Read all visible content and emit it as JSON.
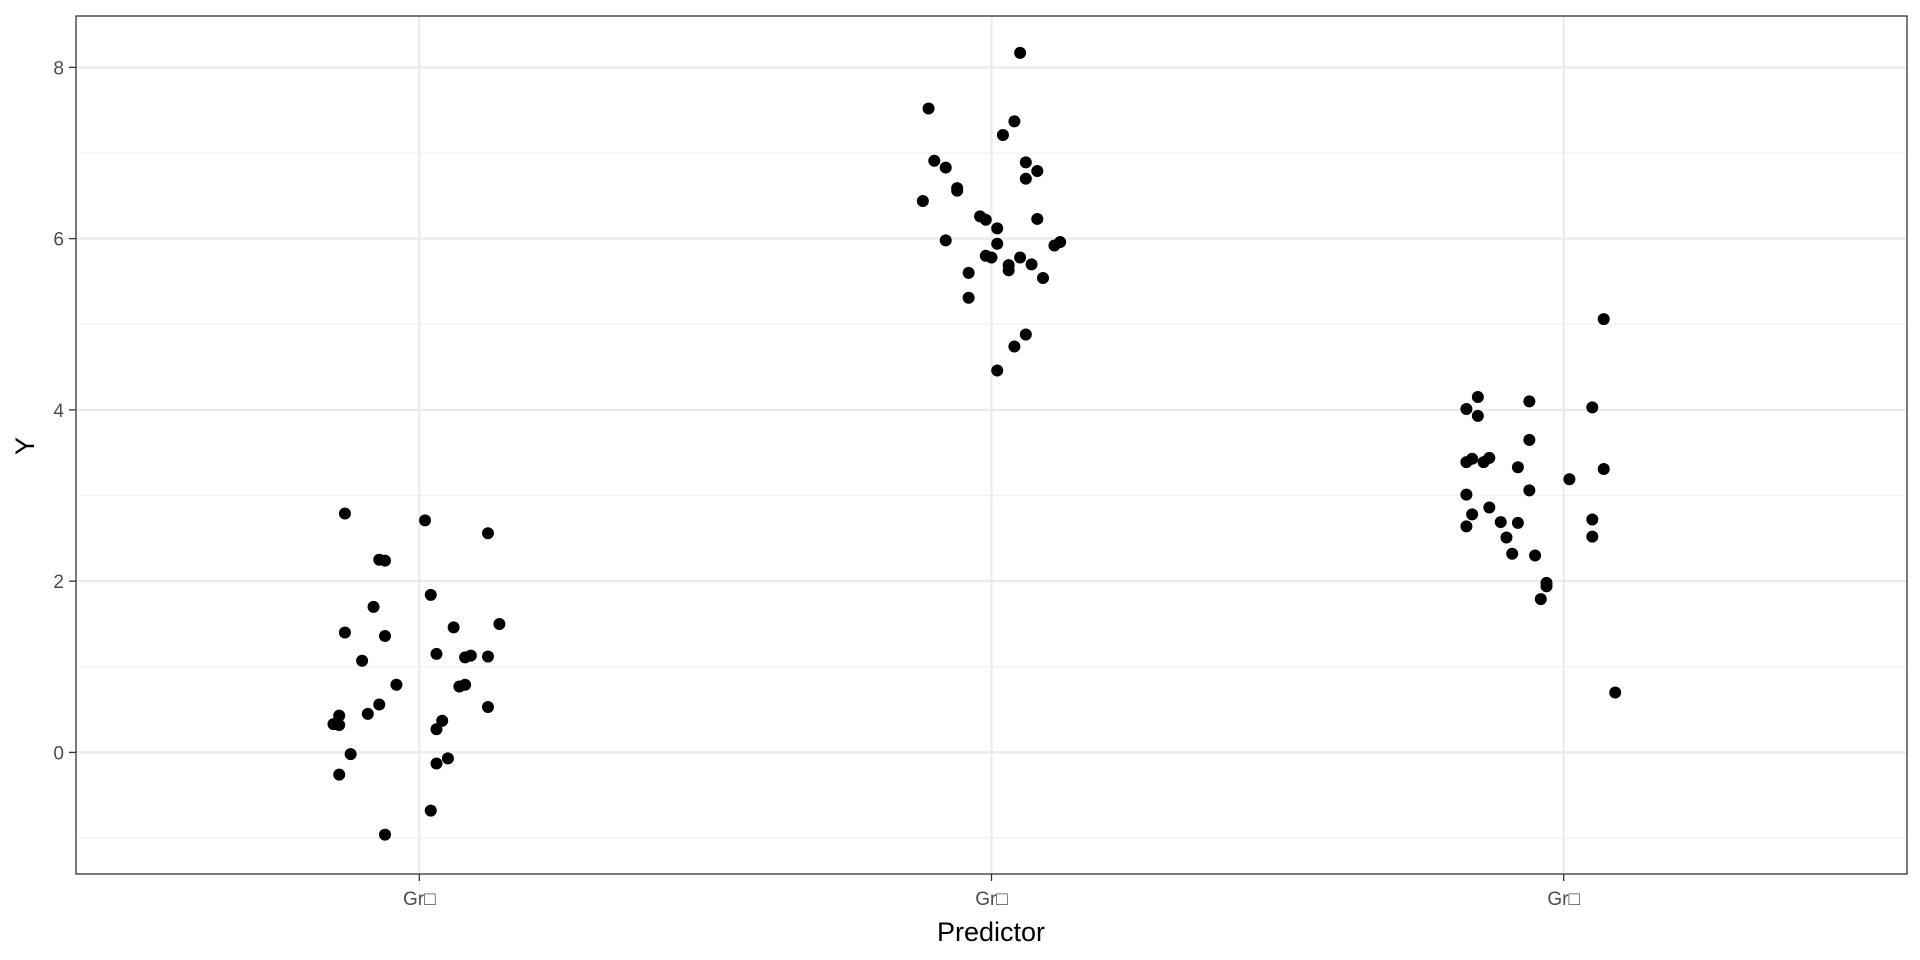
{
  "chart_data": {
    "type": "scatter",
    "xlabel": "Predictor",
    "ylabel": "Y",
    "categories": [
      "Gr□",
      "Gr□",
      "Gr□"
    ],
    "ylim": [
      -1.42,
      8.6
    ],
    "yticks": [
      0,
      2,
      4,
      6,
      8
    ],
    "grid": true,
    "colors": {
      "point": "#000000",
      "grid_major": "#ebebeb",
      "grid_minor": "#f2f2f2",
      "panel_border": "#333333",
      "tick_label": "#4d4d4d"
    },
    "series": [
      {
        "category_index": 0,
        "x_offset": [
          -0.13,
          -0.13,
          -0.14,
          -0.08,
          -0.14,
          -0.12,
          -0.09,
          -0.07,
          -0.06,
          0.01,
          -0.14,
          -0.1,
          -0.06,
          -0.07,
          -0.15,
          -0.06,
          -0.04,
          0.02,
          0.03,
          0.07,
          0.06,
          0.08,
          0.14,
          0.09,
          0.03,
          0.12,
          0.08,
          0.04,
          0.02,
          0.03,
          0.05,
          0.12,
          0.12
        ],
        "y": [
          2.79,
          1.4,
          0.43,
          1.7,
          -0.26,
          -0.02,
          0.45,
          0.56,
          1.36,
          2.71,
          0.32,
          1.07,
          2.24,
          2.25,
          0.33,
          -0.96,
          0.79,
          1.84,
          1.15,
          0.77,
          1.46,
          0.79,
          1.5,
          1.13,
          0.27,
          2.56,
          1.11,
          0.37,
          -0.68,
          -0.13,
          -0.07,
          0.53,
          1.12
        ]
      },
      {
        "category_index": 1,
        "x_offset": [
          -0.11,
          -0.1,
          -0.08,
          -0.06,
          -0.06,
          -0.12,
          -0.08,
          -0.04,
          -0.04,
          -0.01,
          -0.02,
          -0.01,
          0.04,
          0.02,
          0.05,
          0.01,
          0.01,
          0.03,
          0.03,
          0.05,
          0.06,
          0.08,
          0.06,
          0.09,
          0.12,
          0.11,
          0.07,
          0.06,
          0.04,
          0.01,
          0.0,
          0.08
        ],
        "y": [
          7.52,
          6.91,
          6.83,
          6.59,
          6.56,
          6.44,
          5.98,
          5.31,
          5.6,
          5.8,
          6.26,
          6.22,
          7.37,
          7.21,
          8.17,
          6.12,
          5.94,
          5.69,
          5.63,
          5.78,
          6.89,
          6.79,
          6.7,
          5.54,
          5.96,
          5.92,
          5.7,
          4.88,
          4.74,
          4.46,
          5.78,
          6.23
        ]
      },
      {
        "category_index": 2,
        "x_offset": [
          -0.17,
          -0.15,
          -0.15,
          -0.14,
          -0.17,
          -0.16,
          -0.13,
          -0.17,
          -0.16,
          -0.17,
          -0.13,
          -0.11,
          -0.09,
          -0.1,
          -0.08,
          -0.08,
          -0.06,
          -0.06,
          -0.06,
          -0.05,
          -0.04,
          -0.03,
          -0.03,
          0.01,
          0.05,
          0.05,
          0.05,
          0.07,
          0.07,
          0.09
        ],
        "y": [
          4.01,
          4.15,
          3.93,
          3.39,
          3.39,
          3.43,
          3.44,
          3.01,
          2.78,
          2.64,
          2.86,
          2.69,
          2.32,
          2.51,
          2.68,
          3.33,
          3.06,
          3.65,
          4.1,
          2.3,
          1.79,
          1.94,
          1.98,
          3.19,
          4.03,
          2.72,
          2.52,
          3.31,
          5.06,
          0.7
        ]
      }
    ]
  }
}
